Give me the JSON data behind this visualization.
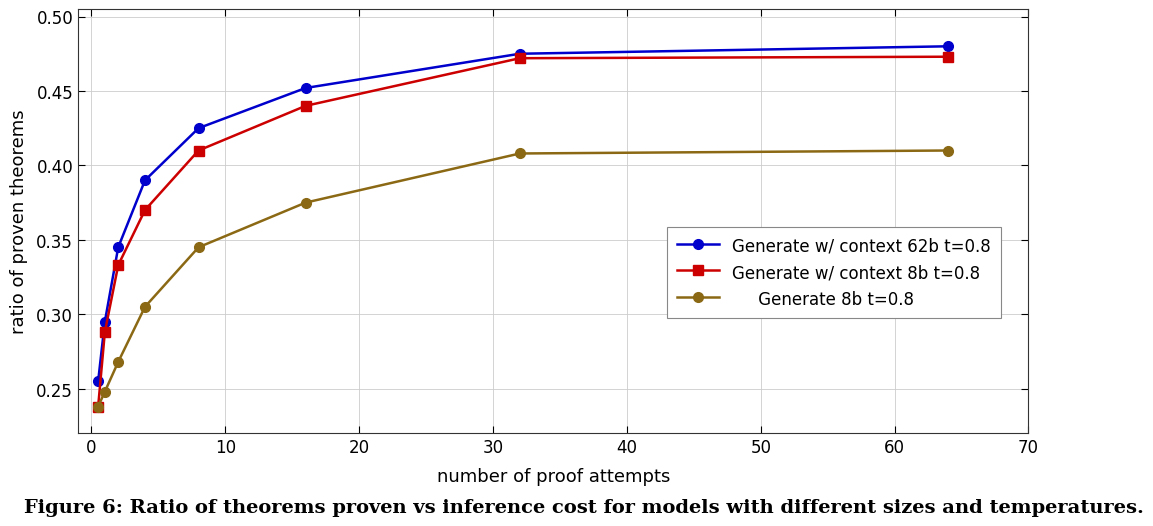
{
  "series": [
    {
      "label": "Generate w/ context 62b t=0.8",
      "x": [
        0.5,
        1,
        2,
        4,
        8,
        16,
        32,
        64
      ],
      "y": [
        0.255,
        0.295,
        0.345,
        0.39,
        0.425,
        0.452,
        0.475,
        0.48
      ],
      "color": "#0000cc",
      "marker": "o",
      "markersize": 7,
      "linewidth": 1.8
    },
    {
      "label": "Generate w/ context 8b t=0.8",
      "x": [
        0.5,
        1,
        2,
        4,
        8,
        16,
        32,
        64
      ],
      "y": [
        0.238,
        0.288,
        0.333,
        0.37,
        0.41,
        0.44,
        0.472,
        0.473
      ],
      "color": "#cc0000",
      "marker": "s",
      "markersize": 7,
      "linewidth": 1.8
    },
    {
      "label": "     Generate 8b t=0.8",
      "x": [
        0.5,
        1,
        2,
        4,
        8,
        16,
        32,
        64
      ],
      "y": [
        0.238,
        0.248,
        0.268,
        0.305,
        0.345,
        0.375,
        0.408,
        0.41
      ],
      "color": "#8B6914",
      "marker": "o",
      "markersize": 7,
      "linewidth": 1.8
    }
  ],
  "xlabel": "number of proof attempts",
  "ylabel": "ratio of proven theorems",
  "xlim": [
    -1,
    70
  ],
  "ylim": [
    0.22,
    0.505
  ],
  "xticks": [
    0,
    10,
    20,
    30,
    40,
    50,
    60,
    70
  ],
  "yticks": [
    0.25,
    0.3,
    0.35,
    0.4,
    0.45,
    0.5
  ],
  "bg_color": "#ffffff",
  "plot_bg_color": "#ffffff",
  "grid_color": "#cccccc",
  "fontsize_labels": 13,
  "fontsize_ticks": 12,
  "fontsize_legend": 12,
  "fontsize_caption": 14,
  "figcaption": "Figure 6: Ratio of theorems proven vs inference cost for models with different sizes and temperatures."
}
